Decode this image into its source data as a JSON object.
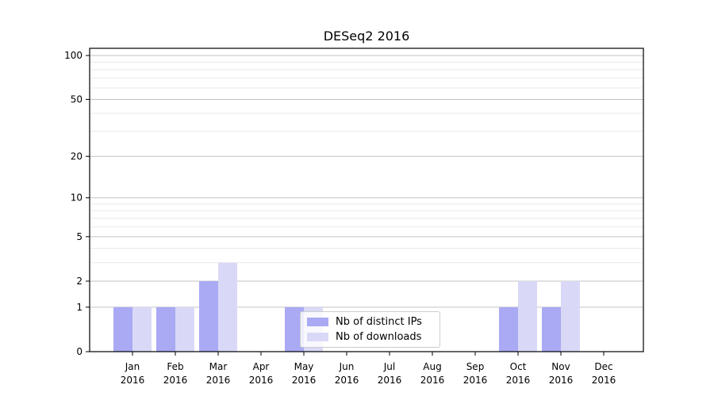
{
  "chart_data": {
    "type": "bar",
    "title": "DESeq2 2016",
    "categories": [
      "Jan",
      "Feb",
      "Mar",
      "Apr",
      "May",
      "Jun",
      "Jul",
      "Aug",
      "Sep",
      "Oct",
      "Nov",
      "Dec"
    ],
    "tick_year": "2016",
    "series": [
      {
        "name": "Nb of distinct IPs",
        "color": "#a9a9f4",
        "values": [
          1,
          1,
          2,
          0,
          1,
          0,
          0,
          0,
          0,
          1,
          1,
          0
        ]
      },
      {
        "name": "Nb of downloads",
        "color": "#d9d9f7",
        "values": [
          1,
          1,
          3,
          0,
          1,
          0,
          0,
          0,
          0,
          2,
          2,
          0
        ]
      }
    ],
    "yscale": "log1p",
    "ylim": [
      0,
      112
    ],
    "yticks_major": [
      0,
      1,
      2,
      5,
      10,
      20,
      50,
      100
    ],
    "yticks_minor": [
      3,
      4,
      6,
      7,
      8,
      9,
      30,
      40,
      60,
      70,
      80,
      90
    ],
    "xlabel": "",
    "ylabel": "",
    "grid": "horizontal",
    "legend_position": "lower center",
    "colors": {
      "grid_major": "#c3c3c3",
      "grid_minor": "#e9e9e9",
      "axis": "#000000",
      "background": "#ffffff"
    }
  }
}
